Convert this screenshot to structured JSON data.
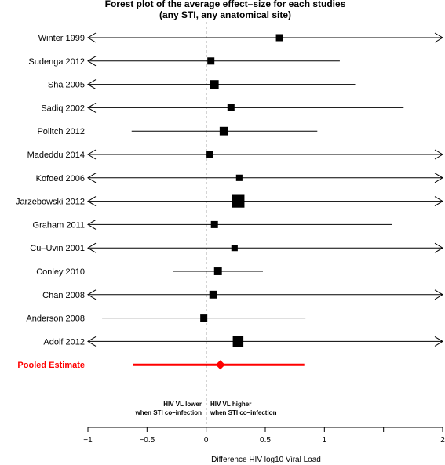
{
  "chart_data": {
    "type": "forest",
    "title_line1": "Forest plot of the average effect–size for each studies",
    "title_line2": "(any STI, any anatomical site)",
    "xlabel": "Difference HIV log10 Viral Load",
    "xlim": [
      -1,
      2
    ],
    "xticks": [
      -1,
      -0.5,
      0,
      0.5,
      1,
      1.5,
      2
    ],
    "xtick_labels": [
      "−1",
      "−0.5",
      "0",
      "0.5",
      "1",
      "",
      "2"
    ],
    "reference_line": 0,
    "annotations": {
      "left_line1": "HIV VL lower",
      "left_line2": "when STI co–infection",
      "right_line1": "HIV VL higher",
      "right_line2": "when STI co–infection"
    },
    "studies": [
      {
        "label": "Winter 1999",
        "estimate": 0.62,
        "lower": -1,
        "upper": 2,
        "arrow_left": true,
        "arrow_right": true,
        "weight": 1.0
      },
      {
        "label": "Sudenga 2012",
        "estimate": 0.04,
        "lower": -1,
        "upper": 1.13,
        "arrow_left": true,
        "arrow_right": false,
        "weight": 1.0
      },
      {
        "label": "Sha 2005",
        "estimate": 0.07,
        "lower": -1,
        "upper": 1.26,
        "arrow_left": true,
        "arrow_right": false,
        "weight": 1.2
      },
      {
        "label": "Sadiq 2002",
        "estimate": 0.21,
        "lower": -1,
        "upper": 1.67,
        "arrow_left": true,
        "arrow_right": false,
        "weight": 1.0
      },
      {
        "label": "Politch 2012",
        "estimate": 0.15,
        "lower": -0.63,
        "upper": 0.94,
        "arrow_left": false,
        "arrow_right": false,
        "weight": 1.2
      },
      {
        "label": "Madeddu 2014",
        "estimate": 0.03,
        "lower": -1,
        "upper": 2,
        "arrow_left": true,
        "arrow_right": true,
        "weight": 0.9
      },
      {
        "label": "Kofoed 2006",
        "estimate": 0.28,
        "lower": -1,
        "upper": 2,
        "arrow_left": true,
        "arrow_right": true,
        "weight": 0.9
      },
      {
        "label": "Jarzebowski 2012",
        "estimate": 0.27,
        "lower": -1,
        "upper": 2,
        "arrow_left": true,
        "arrow_right": true,
        "weight": 1.8
      },
      {
        "label": "Graham 2011",
        "estimate": 0.07,
        "lower": -1,
        "upper": 1.57,
        "arrow_left": true,
        "arrow_right": false,
        "weight": 1.0
      },
      {
        "label": "Cu–Uvin 2001",
        "estimate": 0.24,
        "lower": -1,
        "upper": 2,
        "arrow_left": true,
        "arrow_right": true,
        "weight": 0.9
      },
      {
        "label": "Conley 2010",
        "estimate": 0.1,
        "lower": -0.28,
        "upper": 0.48,
        "arrow_left": false,
        "arrow_right": false,
        "weight": 1.1
      },
      {
        "label": "Chan 2008",
        "estimate": 0.06,
        "lower": -1,
        "upper": 2,
        "arrow_left": true,
        "arrow_right": true,
        "weight": 1.1
      },
      {
        "label": "Anderson 2008",
        "estimate": -0.02,
        "lower": -0.88,
        "upper": 0.84,
        "arrow_left": false,
        "arrow_right": false,
        "weight": 1.0
      },
      {
        "label": "Adolf 2012",
        "estimate": 0.27,
        "lower": -1,
        "upper": 2,
        "arrow_left": true,
        "arrow_right": true,
        "weight": 1.5
      }
    ],
    "pooled": {
      "label": "Pooled Estimate",
      "estimate": 0.12,
      "lower": -0.62,
      "upper": 0.83,
      "color": "#ff0000"
    },
    "colors": {
      "study": "#000000",
      "pooled": "#ff0000"
    }
  }
}
